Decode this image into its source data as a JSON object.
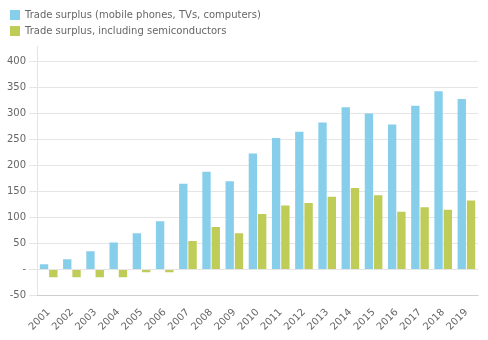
{
  "chart_data": {
    "type": "bar",
    "categories": [
      "2001",
      "2002",
      "2003",
      "2004",
      "2005",
      "2006",
      "2007",
      "2008",
      "2009",
      "2010",
      "2011",
      "2012",
      "2013",
      "2014",
      "2015",
      "2016",
      "2017",
      "2018",
      "2019"
    ],
    "series": [
      {
        "name": "Trade surplus (mobile phones, TVs, computers)",
        "color": "#87CEEB",
        "values": [
          10,
          20,
          35,
          52,
          70,
          93,
          165,
          188,
          170,
          223,
          253,
          265,
          283,
          312,
          300,
          279,
          315,
          343,
          328
        ]
      },
      {
        "name": "Trade surplus, including semiconductors",
        "color": "#BFCC57",
        "values": [
          -15,
          -15,
          -15,
          -15,
          -5,
          -5,
          55,
          82,
          70,
          107,
          123,
          128,
          140,
          157,
          143,
          111,
          120,
          115,
          133
        ]
      }
    ],
    "ylim": [
      -50,
      430
    ],
    "yticks": [
      -50,
      {
        "value": 0,
        "label": "-"
      },
      50,
      100,
      150,
      200,
      250,
      300,
      350,
      400
    ],
    "grid": true,
    "legend": "upper left"
  }
}
